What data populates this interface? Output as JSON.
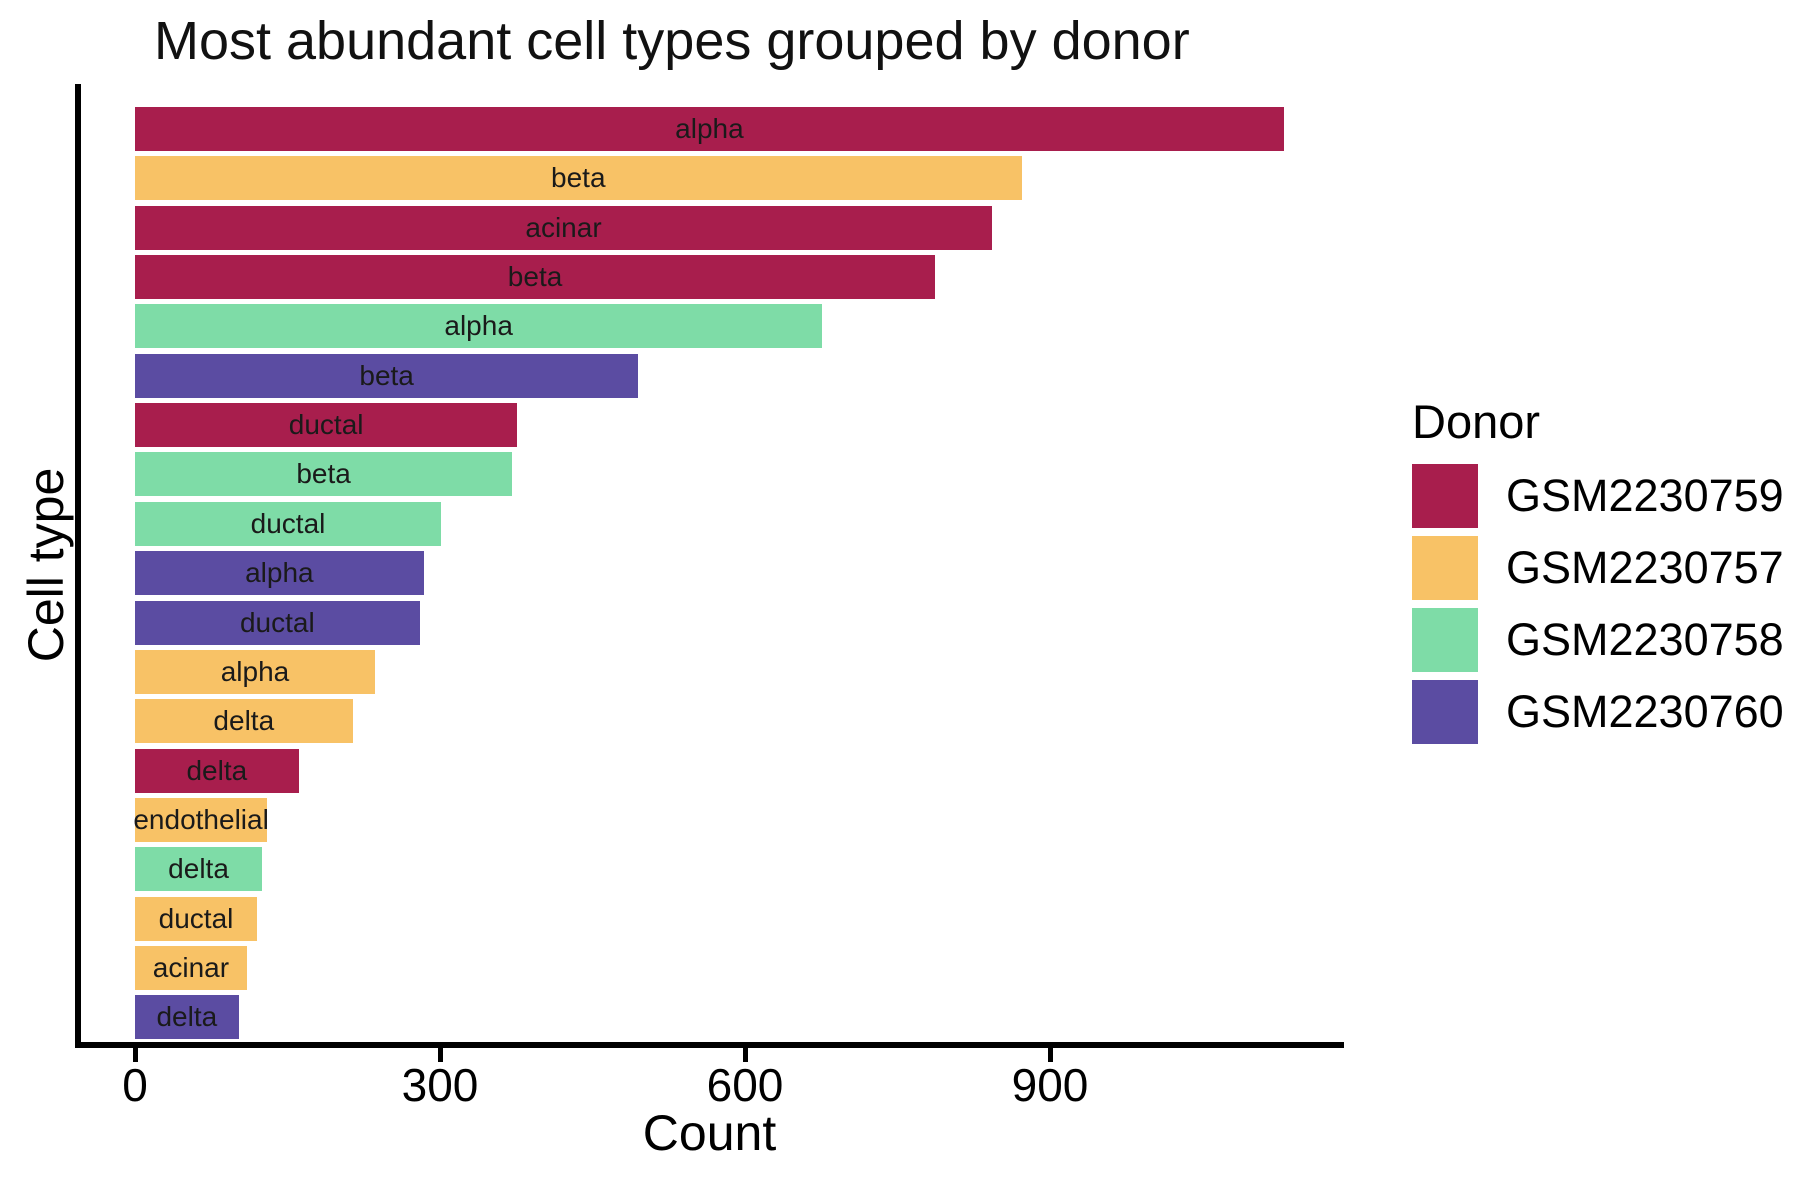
{
  "chart": {
    "title": "Most abundant cell types grouped by donor",
    "xlabel": "Count",
    "ylabel": "Cell type"
  },
  "chart_data": {
    "type": "bar",
    "orientation": "horizontal",
    "title": "Most abundant cell types grouped by donor",
    "xlabel": "Count",
    "ylabel": "Cell type",
    "xlim": [
      0,
      1195
    ],
    "x_ticks": [
      0,
      300,
      600,
      900
    ],
    "grid": false,
    "legend": {
      "title": "Donor",
      "position": "right",
      "entries": [
        {
          "label": "GSM2230759",
          "color": "#A81E4D"
        },
        {
          "label": "GSM2230757",
          "color": "#F8C266"
        },
        {
          "label": "GSM2230758",
          "color": "#7EDCA7"
        },
        {
          "label": "GSM2230760",
          "color": "#5B4CA2"
        }
      ]
    },
    "bars": [
      {
        "cell_type": "alpha",
        "donor": "GSM2230759",
        "count": 1130
      },
      {
        "cell_type": "beta",
        "donor": "GSM2230757",
        "count": 872
      },
      {
        "cell_type": "acinar",
        "donor": "GSM2230759",
        "count": 843
      },
      {
        "cell_type": "beta",
        "donor": "GSM2230759",
        "count": 787
      },
      {
        "cell_type": "alpha",
        "donor": "GSM2230758",
        "count": 676
      },
      {
        "cell_type": "beta",
        "donor": "GSM2230760",
        "count": 495
      },
      {
        "cell_type": "ductal",
        "donor": "GSM2230759",
        "count": 376
      },
      {
        "cell_type": "beta",
        "donor": "GSM2230758",
        "count": 371
      },
      {
        "cell_type": "ductal",
        "donor": "GSM2230758",
        "count": 301
      },
      {
        "cell_type": "alpha",
        "donor": "GSM2230760",
        "count": 284
      },
      {
        "cell_type": "ductal",
        "donor": "GSM2230760",
        "count": 280
      },
      {
        "cell_type": "alpha",
        "donor": "GSM2230757",
        "count": 236
      },
      {
        "cell_type": "delta",
        "donor": "GSM2230757",
        "count": 214
      },
      {
        "cell_type": "delta",
        "donor": "GSM2230759",
        "count": 161
      },
      {
        "cell_type": "endothelial",
        "donor": "GSM2230757",
        "count": 130
      },
      {
        "cell_type": "delta",
        "donor": "GSM2230758",
        "count": 125
      },
      {
        "cell_type": "ductal",
        "donor": "GSM2230757",
        "count": 120
      },
      {
        "cell_type": "acinar",
        "donor": "GSM2230757",
        "count": 110
      },
      {
        "cell_type": "delta",
        "donor": "GSM2230760",
        "count": 102
      }
    ]
  }
}
